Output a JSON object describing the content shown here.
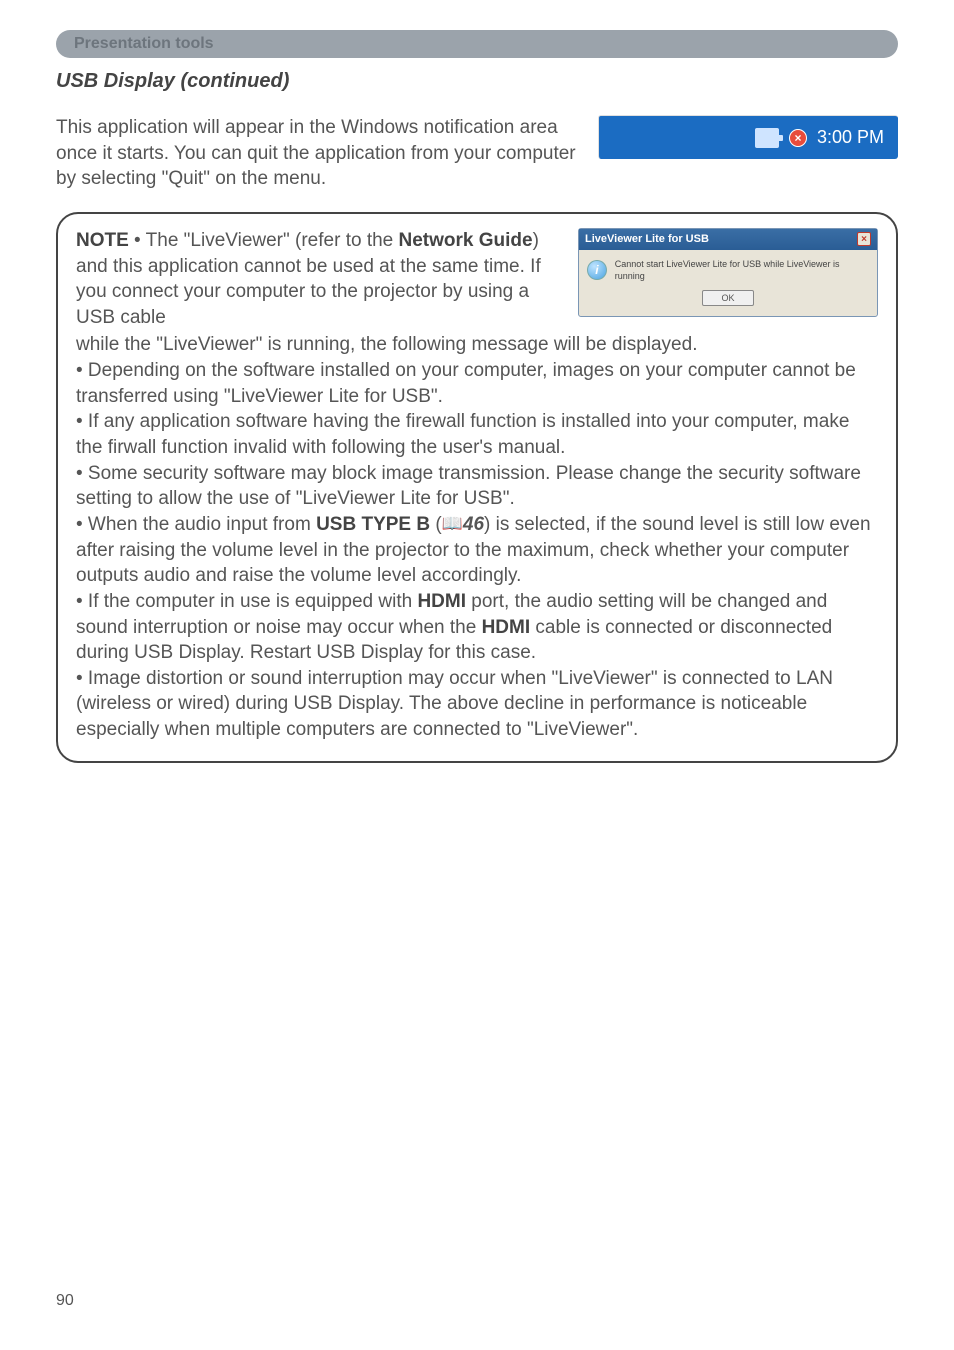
{
  "header": {
    "title": "Presentation tools"
  },
  "sub_heading": "USB Display (continued)",
  "intro": "This application will appear in the Windows notification area once it starts. You can quit the application from your computer by selecting \"Quit\" on the menu.",
  "tray": {
    "time": "3:00 PM"
  },
  "dialog": {
    "title": "LiveViewer Lite for USB",
    "message": "Cannot start LiveViewer Lite for USB while LiveViewer is running",
    "ok": "OK"
  },
  "note": {
    "label": "NOTE",
    "l1a": " • The \"LiveViewer\" (refer to the ",
    "l1b": "Network Guide",
    "l1c": ") and this application cannot be used at the same time. If you connect your computer to the projector by using a USB cable",
    "l2": "while the \"LiveViewer\" is running, the following message will be displayed.",
    "b1": "• Depending on the software installed on your computer, images on your computer cannot be transferred using \"LiveViewer Lite for USB\".",
    "b2": "• If any application software having the firewall function is installed into your computer, make the firwall function invalid with following the user's manual.",
    "b3": "• Some security software may block image transmission. Please change the security software setting to allow the use of \"LiveViewer Lite for USB\".",
    "b4a": "• When the audio input from ",
    "b4b": "USB TYPE B",
    "b4c": " (",
    "b4ref": "46",
    "b4d": ") is selected, if the sound level is still low even after raising the volume level in the projector to the maximum, check whether your computer outputs audio and raise the volume level accordingly.",
    "b5a": "• If the computer in use is equipped with ",
    "b5b": "HDMI",
    "b5c": " port, the audio setting will be changed and sound interruption or noise may occur when the ",
    "b5d": "HDMI",
    "b5e": " cable is connected or disconnected during USB Display. Restart  USB Display for this case.",
    "b6": "• Image distortion or sound interruption may occur when \"LiveViewer\" is connected to LAN (wireless or wired) during USB Display. The above decline in performance is noticeable especially when multiple computers are connected to \"LiveViewer\"."
  },
  "page_number": "90",
  "colors": {
    "header_bg": "#9ba3ab",
    "header_text": "#6d757d",
    "body_text": "#555555",
    "tray_bg": "#1b6cc2",
    "border": "#444444"
  }
}
